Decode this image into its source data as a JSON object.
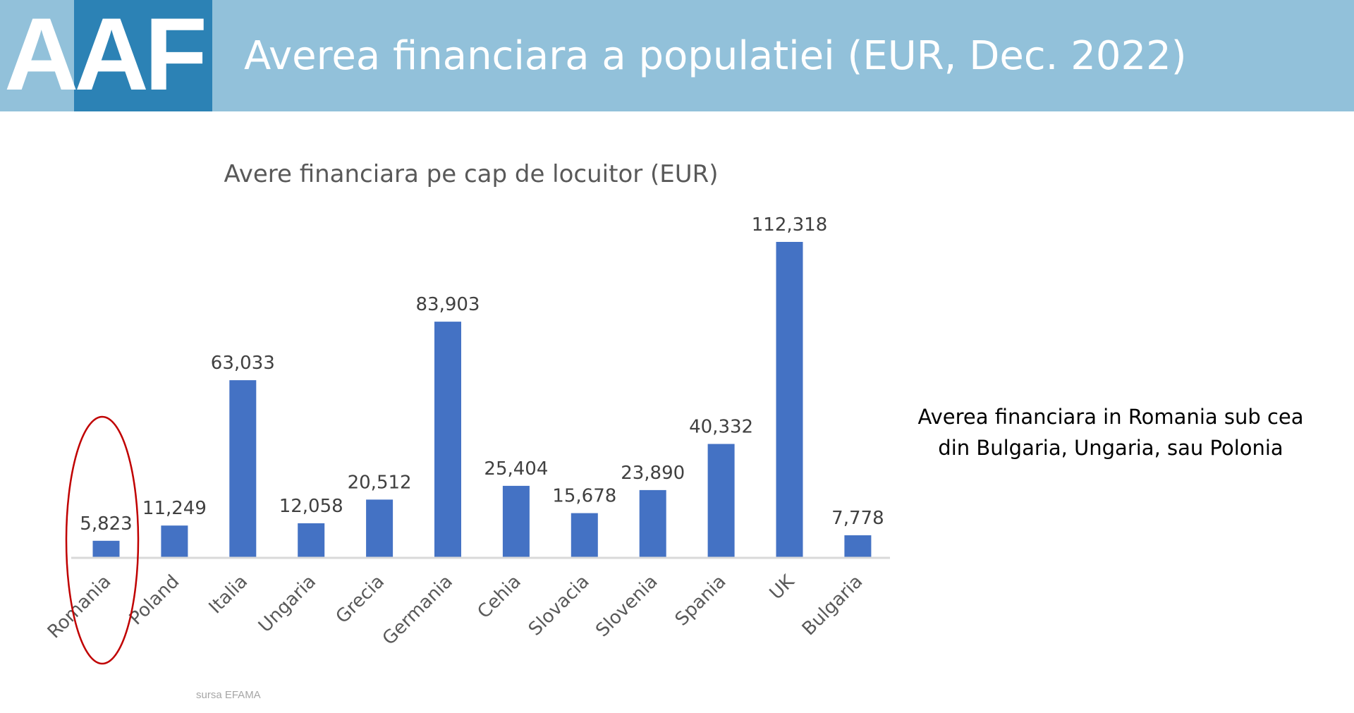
{
  "header": {
    "logo_text": "AAF",
    "title": "Averea financiara a populatiei (EUR, Dec. 2022)"
  },
  "colors": {
    "header_band": "#92c1da",
    "logo_box": "#2c82b5",
    "bar": "#4472c4",
    "highlight_ellipse": "#c00000"
  },
  "chart_data": {
    "type": "bar",
    "title": "Avere financiara pe cap de locuitor (EUR)",
    "xlabel": "",
    "ylabel": "",
    "categories": [
      "Romania",
      "Poland",
      "Italia",
      "Ungaria",
      "Grecia",
      "Germania",
      "Cehia",
      "Slovacia",
      "Slovenia",
      "Spania",
      "UK",
      "Bulgaria"
    ],
    "values": [
      5823,
      11249,
      63033,
      12058,
      20512,
      83903,
      25404,
      15678,
      23890,
      40332,
      112318,
      7778
    ],
    "value_labels": [
      "5,823",
      "11,249",
      "63,033",
      "12,058",
      "20,512",
      "83,903",
      "25,404",
      "15,678",
      "23,890",
      "40,332",
      "112,318",
      "7,778"
    ],
    "ylim": [
      0,
      112318
    ],
    "grid": false,
    "legend": "none",
    "highlighted_category": "Romania"
  },
  "callout": {
    "text": "Averea financiara in Romania sub cea din Bulgaria, Ungaria, sau Polonia"
  },
  "source": "sursa EFAMA"
}
